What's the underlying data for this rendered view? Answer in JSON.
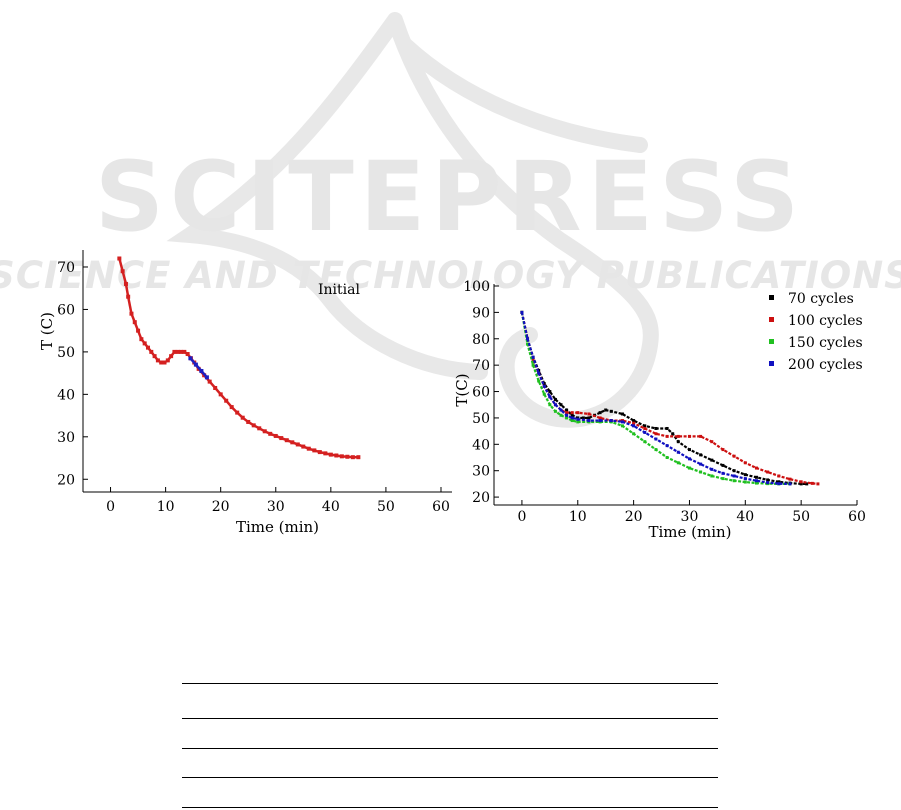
{
  "watermark": {
    "title": "SCITEPRESS",
    "subtitle": "SCIENCE AND TECHNOLOGY PUBLICATIONS",
    "color": "#e6e6e6"
  },
  "chart_data": [
    {
      "type": "scatter",
      "title": "",
      "annotation": "Initial",
      "xlabel": "Time (min)",
      "ylabel": "T (C)",
      "xlim": [
        -5,
        62
      ],
      "ylim": [
        17,
        74
      ],
      "xticks": [
        0,
        10,
        20,
        30,
        40,
        50,
        60
      ],
      "yticks": [
        20,
        30,
        40,
        50,
        60,
        70
      ],
      "grid": false,
      "series": [
        {
          "color": "#d42020",
          "x": [
            1.6,
            2.2,
            2.8,
            3.2,
            3.8,
            4.4,
            5.0,
            5.6,
            6.2,
            6.8,
            7.4,
            8.0,
            8.6,
            9.2,
            9.8,
            10.4,
            11.0,
            11.6,
            12.2,
            12.8,
            13.4,
            14.0,
            14.6,
            15.2,
            16.0,
            17.0,
            18.0,
            19.0,
            20.0,
            21.0,
            22.0,
            23.0,
            24.0,
            25.0,
            26.0,
            27.0,
            28.0,
            29.0,
            30.0,
            31.0,
            32.0,
            33.0,
            34.0,
            35.0,
            36.0,
            37.0,
            38.0,
            39.0,
            40.0,
            41.0,
            42.0,
            43.0,
            44.0,
            45.0
          ],
          "y": [
            72.0,
            69.0,
            66.0,
            63.0,
            59.0,
            57.0,
            55.0,
            53.0,
            52.0,
            51.0,
            50.0,
            49.0,
            48.0,
            47.5,
            47.5,
            48.0,
            49.0,
            50.0,
            50.0,
            50.0,
            50.0,
            49.5,
            48.5,
            47.5,
            46.0,
            44.5,
            43.0,
            41.5,
            40.0,
            38.5,
            37.0,
            35.7,
            34.5,
            33.5,
            32.7,
            32.0,
            31.3,
            30.7,
            30.2,
            29.7,
            29.2,
            28.7,
            28.2,
            27.7,
            27.2,
            26.8,
            26.4,
            26.1,
            25.8,
            25.6,
            25.4,
            25.3,
            25.2,
            25.2
          ]
        },
        {
          "color": "#2020c0",
          "x": [
            14.5,
            15.5,
            16.5,
            17.5
          ],
          "y": [
            48.5,
            47.0,
            45.5,
            44.0
          ]
        }
      ]
    },
    {
      "type": "line",
      "title": "",
      "xlabel": "Time (min)",
      "ylabel": "T(C)",
      "xlim": [
        -5,
        60
      ],
      "ylim": [
        17,
        100
      ],
      "xticks": [
        0,
        10,
        20,
        30,
        40,
        50,
        60
      ],
      "yticks": [
        20,
        30,
        40,
        50,
        60,
        70,
        80,
        90,
        100
      ],
      "grid": false,
      "legend": "top-right",
      "series": [
        {
          "name": "70 cycles",
          "color": "#000000",
          "x": [
            0,
            1,
            2,
            3,
            4,
            5,
            6,
            7,
            8,
            9,
            10,
            11,
            12,
            13,
            14,
            15,
            16,
            18,
            20,
            22,
            24,
            26,
            27,
            28,
            30,
            32,
            34,
            36,
            38,
            40,
            42,
            44,
            46,
            48,
            50,
            51
          ],
          "y": [
            90,
            80,
            73,
            68,
            63,
            60,
            57,
            55,
            53,
            51,
            50,
            50,
            50,
            51,
            52,
            53,
            52.5,
            51.5,
            49,
            47,
            46,
            46,
            44,
            41,
            38,
            36,
            34,
            32,
            30,
            28.5,
            27.5,
            26.5,
            25.8,
            25.3,
            25,
            25
          ]
        },
        {
          "name": "100 cycles",
          "color": "#cc1010",
          "x": [
            0,
            1,
            2,
            3,
            4,
            5,
            6,
            7,
            8,
            9,
            10,
            12,
            14,
            16,
            18,
            20,
            22,
            24,
            26,
            28,
            30,
            32,
            34,
            36,
            38,
            40,
            42,
            44,
            46,
            48,
            50,
            52,
            53
          ],
          "y": [
            90,
            80,
            72,
            67,
            62,
            58,
            55,
            53,
            52,
            52,
            52,
            51.5,
            50,
            49,
            49,
            48,
            46,
            44,
            43,
            43,
            43,
            43,
            41,
            38,
            35.5,
            33,
            31,
            29.5,
            28,
            26.8,
            25.8,
            25.2,
            25
          ]
        },
        {
          "name": "150 cycles",
          "color": "#20c020",
          "x": [
            0,
            1,
            2,
            3,
            4,
            5,
            6,
            7,
            8,
            9,
            10,
            12,
            14,
            16,
            18,
            20,
            22,
            24,
            26,
            28,
            30,
            32,
            34,
            36,
            38,
            40,
            42,
            44,
            46,
            48
          ],
          "y": [
            90,
            78,
            70,
            64,
            59,
            55,
            52.5,
            51,
            50,
            49,
            48.5,
            48.5,
            48.5,
            48.5,
            47,
            44,
            41,
            38,
            35,
            33,
            31,
            29.5,
            28,
            27,
            26.2,
            25.7,
            25.3,
            25.1,
            25,
            25
          ]
        },
        {
          "name": "200 cycles",
          "color": "#1010c0",
          "x": [
            0,
            1,
            2,
            3,
            4,
            5,
            6,
            7,
            8,
            9,
            10,
            12,
            14,
            16,
            18,
            20,
            22,
            24,
            26,
            28,
            30,
            32,
            34,
            36,
            38,
            40,
            42,
            44,
            46,
            48
          ],
          "y": [
            90,
            80,
            73,
            67,
            62,
            58,
            55,
            53,
            51,
            50,
            49.5,
            49,
            49,
            49,
            48.5,
            47,
            44.5,
            42,
            39.5,
            37,
            34.5,
            32.5,
            30.5,
            29,
            28,
            27,
            26.2,
            25.5,
            25.1,
            25
          ]
        }
      ]
    }
  ]
}
